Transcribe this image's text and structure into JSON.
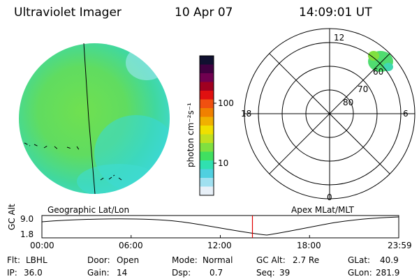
{
  "header": {
    "title": "Ultraviolet Imager",
    "date": "10 Apr 07",
    "time": "14:09:01 UT"
  },
  "colorbar": {
    "label": "photon cm⁻²s⁻¹",
    "ticks": [
      "100",
      "10"
    ],
    "colors": [
      "#101030",
      "#400040",
      "#700050",
      "#a00020",
      "#e01010",
      "#f05010",
      "#f08000",
      "#f0b000",
      "#f0e000",
      "#c0e020",
      "#80e040",
      "#40e060",
      "#30e0b0",
      "#50d0e0",
      "#a0e0f0",
      "#e8f0f8"
    ]
  },
  "geo_panel": {
    "label": "Geographic Lat/Lon"
  },
  "polar_panel": {
    "label": "Apex MLat/MLT",
    "mlt_labels": [
      "12",
      "18",
      "6",
      "0"
    ],
    "lat_labels": [
      "60",
      "70",
      "80"
    ]
  },
  "altitude_plot": {
    "ylabel": "GC Alt",
    "ytick_top": "9.0",
    "ytick_bottom": "1.8",
    "xticks": [
      "00:00",
      "06:00",
      "12:00",
      "18:00",
      "23:59"
    ],
    "marker_time": "14:09"
  },
  "info": {
    "flt_label": "Flt:",
    "flt_value": "LBHL",
    "ip_label": "IP:",
    "ip_value": "36.0",
    "door_label": "Door:",
    "door_value": "Open",
    "gain_label": "Gain:",
    "gain_value": "14",
    "mode_label": "Mode:",
    "mode_value": "Normal",
    "dsp_label": "Dsp:",
    "dsp_value": "0.7",
    "gcalt_label": "GC Alt:",
    "gcalt_value": "2.7 Re",
    "seq_label": "Seq:",
    "seq_value": "39",
    "glat_label": "GLat:",
    "glat_value": "40.9",
    "glon_label": "GLon:",
    "glon_value": "281.9"
  }
}
